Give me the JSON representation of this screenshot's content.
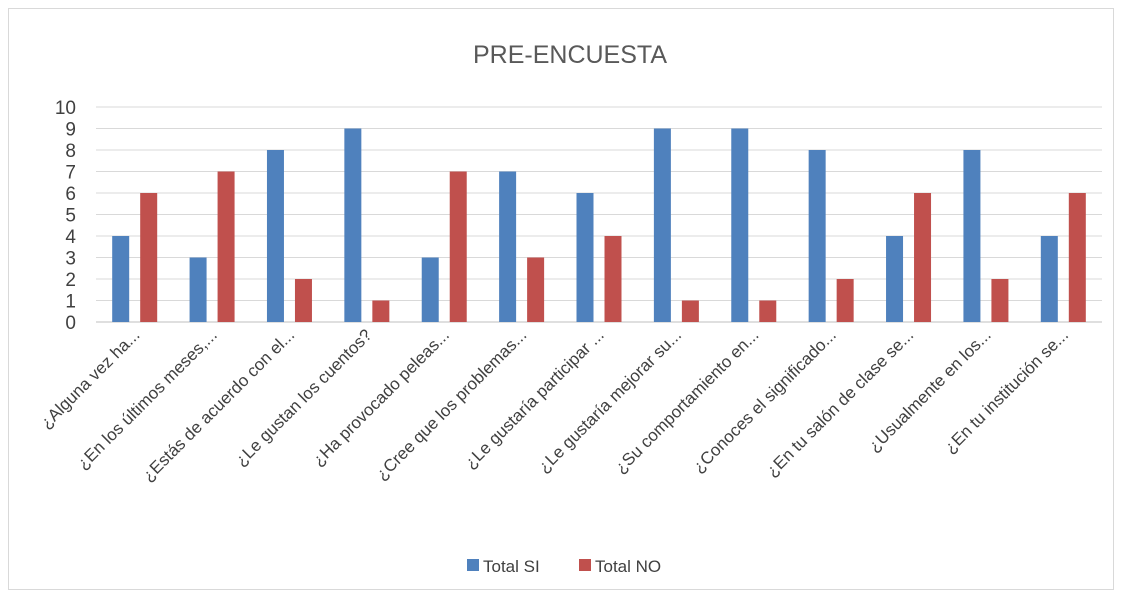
{
  "chart_data": {
    "type": "bar",
    "title": "PRE-ENCUESTA",
    "categories": [
      "¿Alguna vez ha...",
      "¿En los últimos meses,...",
      "¿Estás de acuerdo con el...",
      "¿Le gustan los cuentos?",
      "¿Ha provocado peleas...",
      "¿Cree que los problemas...",
      "¿Le gustaría participar ...",
      "¿Le gustaría mejorar su...",
      "¿Su comportamiento en...",
      "¿Conoces el significado...",
      "¿En tu salón de clase se...",
      "¿Usualmente en los...",
      "¿En tu institución se..."
    ],
    "series": [
      {
        "name": "Total SI",
        "color": "#4f81bd",
        "values": [
          4,
          3,
          8,
          9,
          3,
          7,
          6,
          9,
          9,
          8,
          4,
          8,
          4
        ]
      },
      {
        "name": "Total NO",
        "color": "#c0504d",
        "values": [
          6,
          7,
          2,
          1,
          7,
          3,
          4,
          1,
          1,
          2,
          6,
          2,
          6
        ]
      }
    ],
    "ylim": [
      0,
      10
    ],
    "yticks": [
      "0",
      "1",
      "2",
      "3",
      "4",
      "5",
      "6",
      "7",
      "8",
      "9",
      "10"
    ],
    "grid": true,
    "legend_position": "bottom",
    "gridline_color": "#d9d9d9",
    "axis_line_color": "#bfbfbf"
  }
}
